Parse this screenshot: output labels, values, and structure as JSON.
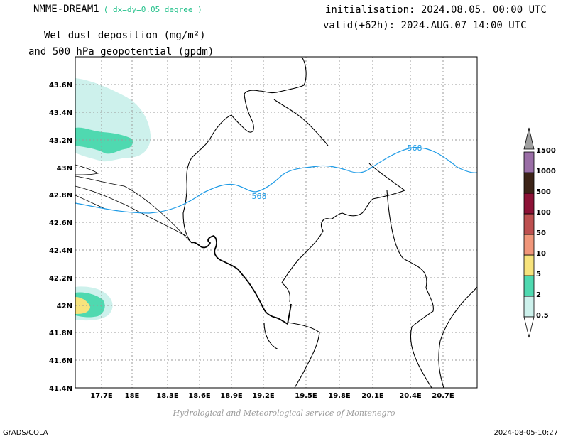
{
  "header": {
    "model": "NMME-DREAM1",
    "resolution": "( dx=dy=0.05 degree )",
    "title_line1": "Wet dust deposition (mg/m²)",
    "title_line2": "and 500 hPa geopotential (gpdm)",
    "init": "initialisation: 2024.08.05. 00:00 UTC",
    "valid": "valid(+62h): 2024.AUG.07 14:00 UTC"
  },
  "map": {
    "x_ticks": [
      "17.7E",
      "18E",
      "18.3E",
      "18.6E",
      "18.9E",
      "19.2E",
      "19.5E",
      "19.8E",
      "20.1E",
      "20.4E",
      "20.7E"
    ],
    "y_ticks": [
      "43.6N",
      "43.4N",
      "43.2N",
      "43N",
      "42.8N",
      "42.6N",
      "42.4N",
      "42.2N",
      "42N",
      "41.8N",
      "41.6N",
      "41.4N"
    ],
    "contour_labels": [
      "568",
      "568"
    ],
    "contour_color": "#1e9be6"
  },
  "legend": {
    "levels": [
      "0.5",
      "2",
      "5",
      "10",
      "50",
      "100",
      "500",
      "1000",
      "1500"
    ],
    "colors": [
      "#cdf1ec",
      "#4fd9b0",
      "#f7e37c",
      "#f0967a",
      "#bd5050",
      "#8c1236",
      "#3c2418",
      "#9a6ea6"
    ],
    "arrow_color": "#a0a0a0"
  },
  "footer": {
    "credit": "Hydrological and Meteorological service of Montenegro",
    "software": "GrADS/COLA",
    "timestamp": "2024-08-05-10:27"
  }
}
